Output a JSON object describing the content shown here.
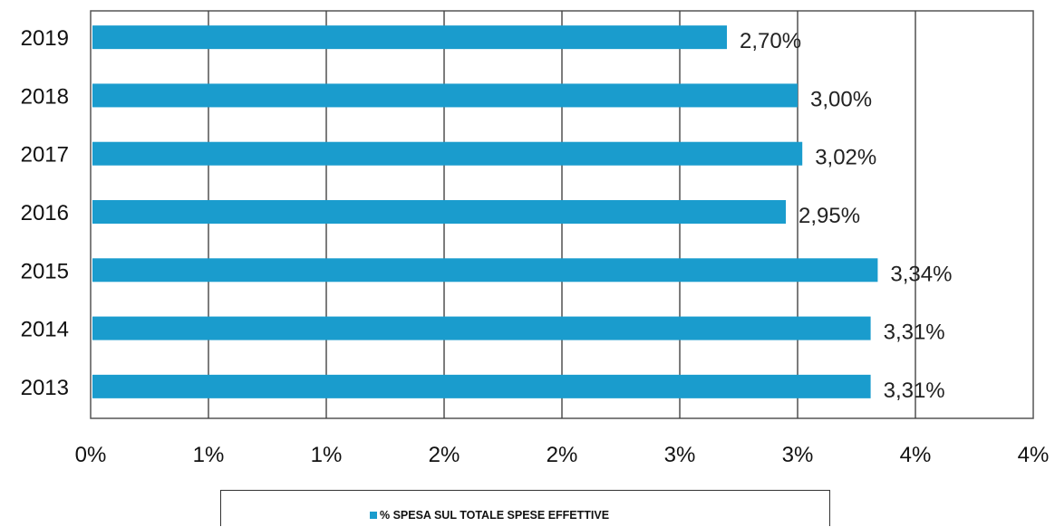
{
  "chart_data": {
    "type": "bar",
    "orientation": "horizontal",
    "categories": [
      "2019",
      "2018",
      "2017",
      "2016",
      "2015",
      "2014",
      "2013"
    ],
    "series": [
      {
        "name": "% SPESA SUL TOTALE SPESE EFFETTIVE",
        "values": [
          2.7,
          3.0,
          3.02,
          2.95,
          3.34,
          3.31,
          3.31
        ],
        "value_labels": [
          "2,70%",
          "3,00%",
          "3,02%",
          "2,95%",
          "3,34%",
          "3,31%",
          "3,31%"
        ]
      }
    ],
    "x_tick_labels": [
      "0%",
      "1%",
      "1%",
      "2%",
      "2%",
      "3%",
      "3%",
      "4%",
      "4%"
    ],
    "xlim": [
      0,
      4
    ],
    "grid": true,
    "legend": "bottom",
    "bar_color": "#1a9ccd"
  }
}
